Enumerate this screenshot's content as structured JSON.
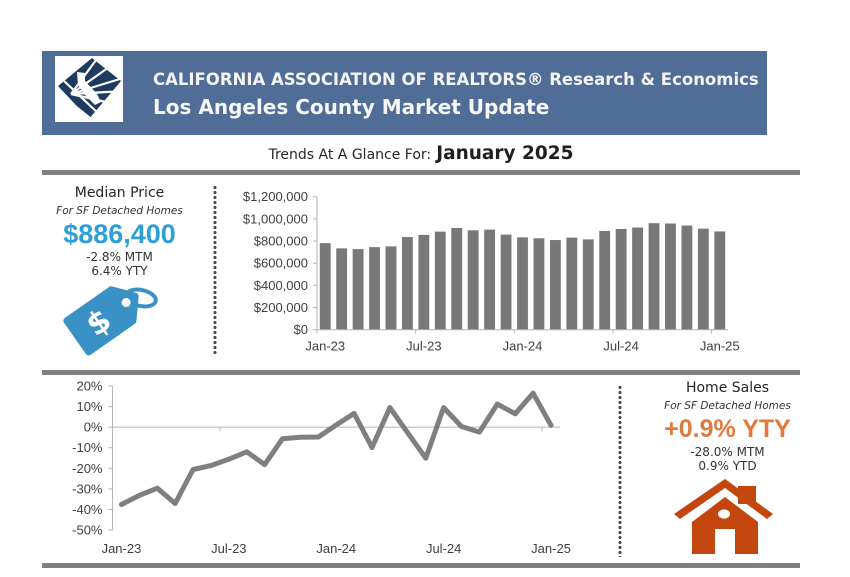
{
  "header": {
    "org": "CALIFORNIA ASSOCIATION OF REALTORS® Research & Economics",
    "title": "Los Angeles County Market Update",
    "logo_icon": "car-sunburst-logo-icon"
  },
  "subtitle": {
    "prefix": "Trends At A Glance For:",
    "period": "January 2025"
  },
  "median_price": {
    "title": "Median Price",
    "subtitle": "For SF Detached Homes",
    "value": "$886,400",
    "mtm": "-2.8% MTM",
    "yty": "6.4% YTY",
    "icon": "price-tag-icon",
    "icon_glyph": "$"
  },
  "home_sales": {
    "title": "Home Sales",
    "subtitle": "For SF Detached Homes",
    "value": "+0.9% YTY",
    "mtm": "-28.0% MTM",
    "ytd": "0.9% YTD",
    "icon": "house-icon"
  },
  "colors": {
    "header_bg": "#4f6d96",
    "logo_navy": "#1d3a5f",
    "price_blue": "#2b9fd6",
    "tag_blue": "#3a91c5",
    "sales_orange": "#e07a3c",
    "house_orange": "#c4460f",
    "bar_gray": "#787878",
    "line_gray": "#7f7f7f",
    "rule_gray": "#808080"
  },
  "chart_data": [
    {
      "type": "bar",
      "title": "",
      "description": "Median Price, SF Detached Homes (monthly)",
      "xlabel": "",
      "ylabel": "",
      "categories": [
        "Jan-23",
        "Feb-23",
        "Mar-23",
        "Apr-23",
        "May-23",
        "Jun-23",
        "Jul-23",
        "Aug-23",
        "Sep-23",
        "Oct-23",
        "Nov-23",
        "Dec-23",
        "Jan-24",
        "Feb-24",
        "Mar-24",
        "Apr-24",
        "May-24",
        "Jun-24",
        "Jul-24",
        "Aug-24",
        "Sep-24",
        "Oct-24",
        "Nov-24",
        "Dec-24",
        "Jan-25"
      ],
      "values": [
        781000,
        734000,
        727000,
        745000,
        752000,
        836000,
        855000,
        885000,
        918000,
        897000,
        903000,
        858000,
        833000,
        825000,
        809000,
        831000,
        815000,
        891000,
        909000,
        922000,
        961000,
        958000,
        940000,
        912000,
        886400
      ],
      "ylim": [
        0,
        1200000
      ],
      "yticks": [
        0,
        200000,
        400000,
        600000,
        800000,
        1000000,
        1200000
      ],
      "ytick_labels": [
        "$0",
        "$200,000",
        "$400,000",
        "$600,000",
        "$800,000",
        "$1,000,000",
        "$1,200,000"
      ],
      "xtick_labels": [
        "Jan-23",
        "Jul-23",
        "Jan-24",
        "Jul-24",
        "Jan-25"
      ],
      "grid": false,
      "legend": "none"
    },
    {
      "type": "line",
      "title": "",
      "description": "Home Sales, SF Detached Homes, year-to-year % change (monthly)",
      "xlabel": "",
      "ylabel": "",
      "categories": [
        "Jan-23",
        "Feb-23",
        "Mar-23",
        "Apr-23",
        "May-23",
        "Jun-23",
        "Jul-23",
        "Aug-23",
        "Sep-23",
        "Oct-23",
        "Nov-23",
        "Dec-23",
        "Jan-24",
        "Feb-24",
        "Mar-24",
        "Apr-24",
        "May-24",
        "Jun-24",
        "Jul-24",
        "Aug-24",
        "Sep-24",
        "Oct-24",
        "Nov-24",
        "Dec-24",
        "Jan-25"
      ],
      "values": [
        -37.6,
        -33.2,
        -29.7,
        -37.1,
        -20.6,
        -18.7,
        -15.6,
        -12.0,
        -18.2,
        -5.6,
        -4.9,
        -4.8,
        1.1,
        6.7,
        -9.9,
        9.5,
        -2.8,
        -15.1,
        9.5,
        0.3,
        -2.4,
        11.2,
        6.5,
        16.5,
        0.9
      ],
      "unit": "%",
      "ylim": [
        -50,
        20
      ],
      "yticks": [
        -50,
        -40,
        -30,
        -20,
        -10,
        0,
        10,
        20
      ],
      "ytick_labels": [
        "-50%",
        "-40%",
        "-30%",
        "-20%",
        "-10%",
        "0%",
        "10%",
        "20%"
      ],
      "xtick_labels": [
        "Jan-23",
        "Jul-23",
        "Jan-24",
        "Jul-24",
        "Jan-25"
      ],
      "grid": false,
      "legend": "none"
    }
  ]
}
